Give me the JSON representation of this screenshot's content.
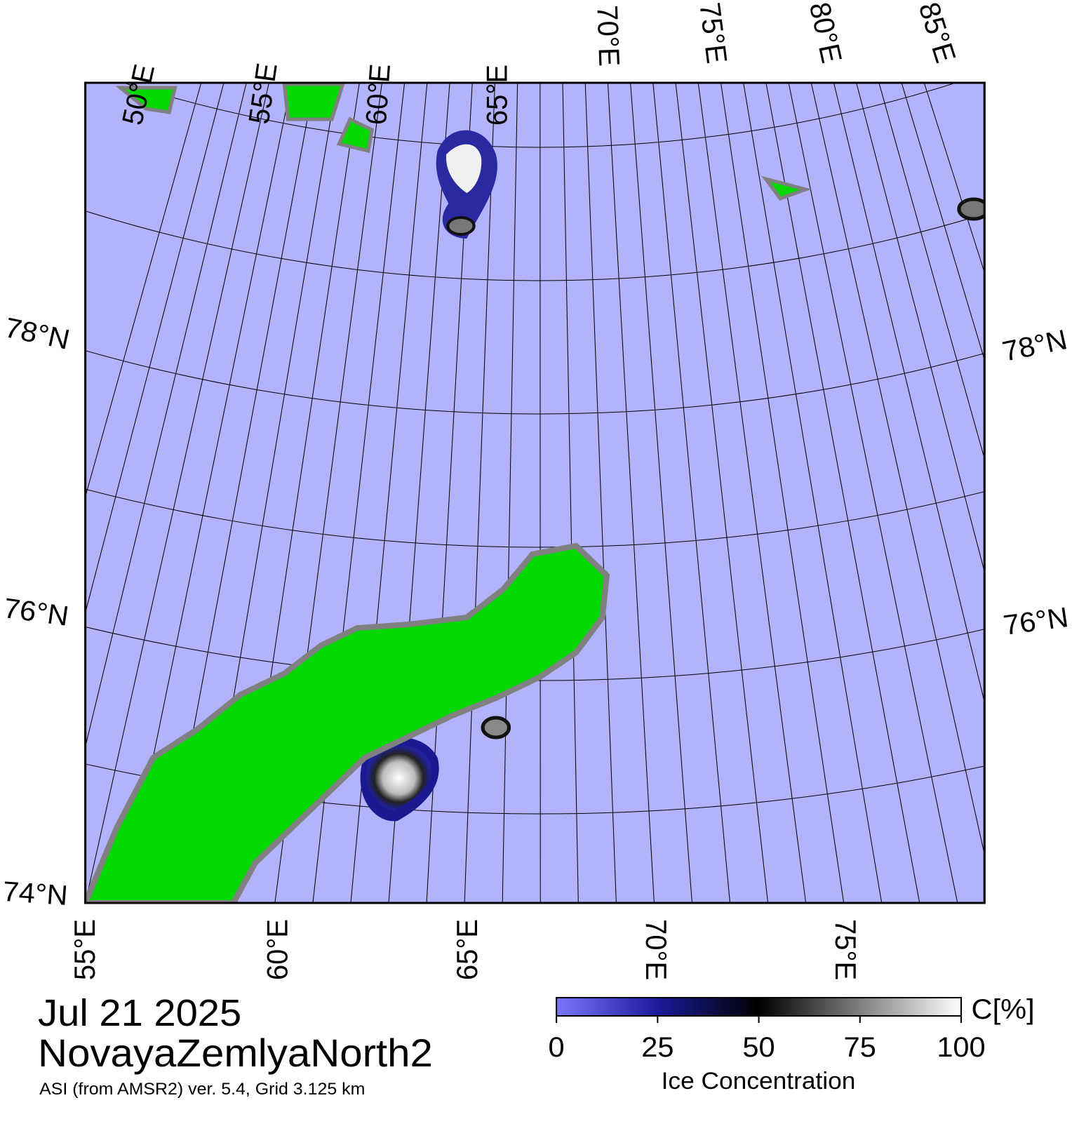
{
  "map": {
    "top_lon_labels": [
      "50°E",
      "55°E",
      "60°E",
      "65°E",
      "70°E",
      "75°E",
      "80°E",
      "85°E"
    ],
    "bottom_lon_labels": [
      "55°E",
      "60°E",
      "65°E",
      "70°E",
      "75°E"
    ],
    "left_lat_labels": [
      "78°N",
      "76°N",
      "74°N"
    ],
    "right_lat_labels": [
      "78°N",
      "76°N"
    ]
  },
  "caption": {
    "date": "Jul 21 2025",
    "region": "NovayaZemlyaNorth2",
    "source": "ASI (from AMSR2) ver. 5.4,  Grid 3.125 km"
  },
  "colorbar": {
    "lim": [
      0,
      100
    ],
    "ticks": [
      0,
      25,
      50,
      75,
      100
    ],
    "unit": "C[%]",
    "label": "Ice Concentration"
  }
}
